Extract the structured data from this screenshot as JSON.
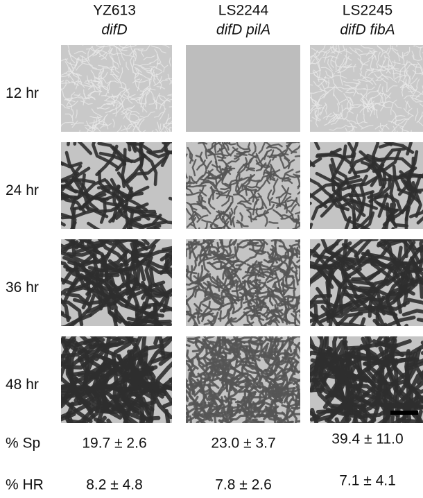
{
  "columns": [
    {
      "strain": "YZ613",
      "genotype": "difD"
    },
    {
      "strain": "LS2244",
      "genotype": "difD pilA"
    },
    {
      "strain": "LS2245",
      "genotype": "difD fibA"
    }
  ],
  "rows": [
    "12 hr",
    "24 hr",
    "36 hr",
    "48 hr"
  ],
  "stats": [
    {
      "label": "% Sp",
      "values": [
        "19.7 ± 2.6",
        "23.0 ± 3.7",
        "39.4 ± 11.0"
      ]
    },
    {
      "label": "% HR",
      "values": [
        "8.2 ± 4.8",
        "7.8 ± 2.6",
        "7.1 ±  4.1"
      ]
    }
  ]
}
